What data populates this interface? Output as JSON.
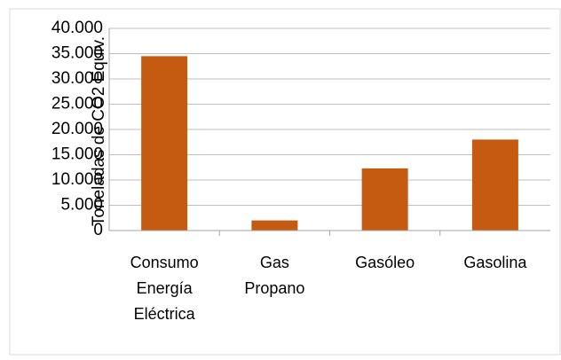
{
  "chart_data": {
    "type": "bar",
    "title": "",
    "xlabel": "",
    "ylabel": "Toneladas de CO2 Equiv.",
    "categories": [
      [
        "Consumo",
        "Energía",
        "Eléctrica"
      ],
      [
        "Gas",
        "Propano"
      ],
      [
        "Gasóleo"
      ],
      [
        "Gasolina"
      ]
    ],
    "values": [
      34500,
      2000,
      12300,
      18000
    ],
    "ylim": [
      0,
      40000
    ],
    "yticks": [
      "0",
      "5.000",
      "10.000",
      "15.000",
      "20.000",
      "25.000",
      "30.000",
      "35.000",
      "40.000"
    ],
    "grid": true,
    "legend": "none",
    "bar_color": "#C55A11",
    "grid_color": "#BFBFBF"
  }
}
